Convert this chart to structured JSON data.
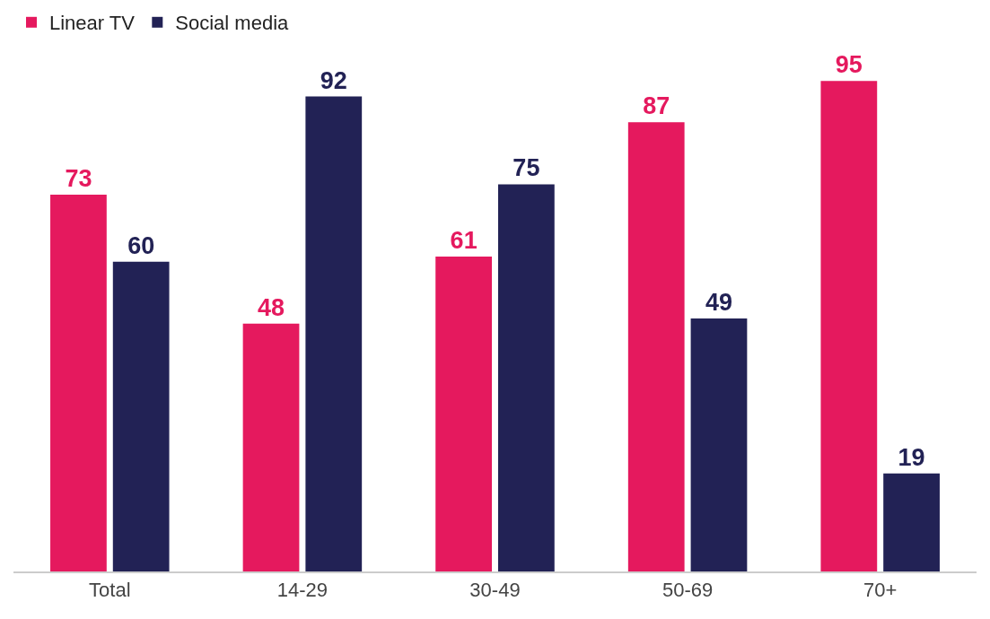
{
  "chart_data": {
    "type": "bar",
    "categories": [
      "Total",
      "14-29",
      "30-49",
      "50-69",
      "70+"
    ],
    "series": [
      {
        "name": "Linear TV",
        "color": "#e5195e",
        "values": [
          73,
          48,
          61,
          87,
          95
        ]
      },
      {
        "name": "Social media",
        "color": "#222255",
        "values": [
          60,
          92,
          75,
          49,
          19
        ]
      }
    ],
    "ylim": [
      0,
      110
    ],
    "tick_labels": "x",
    "data_labels": true,
    "legend": "top left"
  }
}
